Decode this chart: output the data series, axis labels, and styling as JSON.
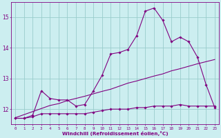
{
  "xlabel": "Windchill (Refroidissement éolien,°C)",
  "bg_color": "#cceef0",
  "line_color": "#800080",
  "grid_color": "#99cccc",
  "x_hours": [
    0,
    1,
    2,
    3,
    4,
    5,
    6,
    7,
    8,
    9,
    10,
    11,
    12,
    13,
    14,
    15,
    16,
    17,
    18,
    19,
    20,
    21,
    22,
    23
  ],
  "temp_actual": [
    11.7,
    11.7,
    11.8,
    12.6,
    12.35,
    12.3,
    12.3,
    12.1,
    12.15,
    12.6,
    13.1,
    13.8,
    13.85,
    13.95,
    14.4,
    15.2,
    15.3,
    14.9,
    14.2,
    14.35,
    14.2,
    13.7,
    12.8,
    12.05
  ],
  "windchill": [
    11.7,
    11.7,
    11.75,
    11.85,
    11.85,
    11.85,
    11.85,
    11.85,
    11.85,
    11.9,
    11.95,
    12.0,
    12.0,
    12.0,
    12.05,
    12.05,
    12.1,
    12.1,
    12.1,
    12.15,
    12.1,
    12.1,
    12.1,
    12.1
  ],
  "regression": [
    11.72,
    11.82,
    11.92,
    12.02,
    12.12,
    12.18,
    12.28,
    12.35,
    12.42,
    12.5,
    12.58,
    12.65,
    12.75,
    12.85,
    12.92,
    13.0,
    13.08,
    13.15,
    13.25,
    13.32,
    13.4,
    13.48,
    13.55,
    13.62
  ],
  "xlim": [
    -0.5,
    23.5
  ],
  "ylim": [
    11.5,
    15.5
  ],
  "yticks": [
    12,
    13,
    14,
    15
  ],
  "xticks": [
    0,
    1,
    2,
    3,
    4,
    5,
    6,
    7,
    8,
    9,
    10,
    11,
    12,
    13,
    14,
    15,
    16,
    17,
    18,
    19,
    20,
    21,
    22,
    23
  ]
}
